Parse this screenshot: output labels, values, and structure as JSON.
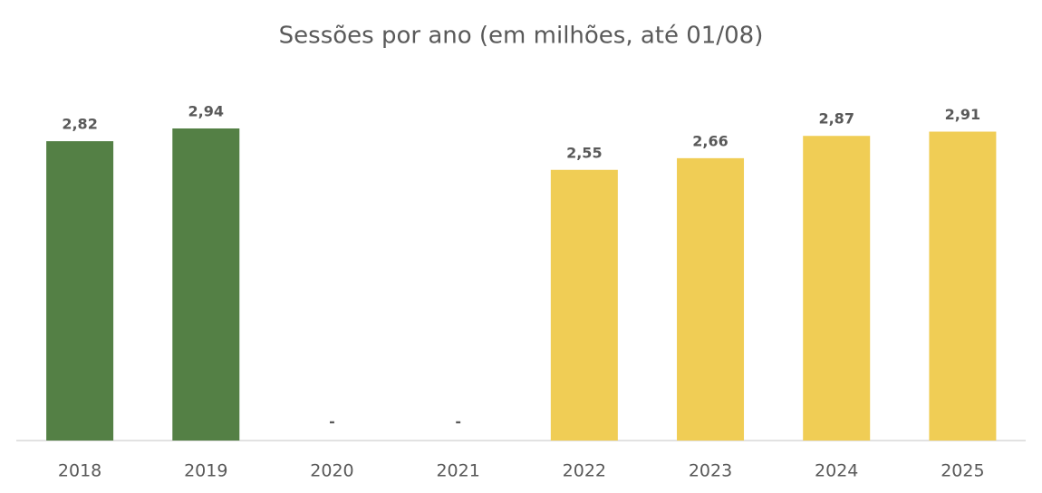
{
  "chart_data": {
    "type": "bar",
    "title": "Sessões por ano (em milhões, até 01/08)",
    "categories": [
      "2018",
      "2019",
      "2020",
      "2021",
      "2022",
      "2023",
      "2024",
      "2025"
    ],
    "values": [
      2.82,
      2.94,
      null,
      null,
      2.55,
      2.66,
      2.87,
      2.91
    ],
    "value_labels": [
      "2,82",
      "2,94",
      "-",
      "-",
      "2,55",
      "2,66",
      "2,87",
      "2,91"
    ],
    "colors": [
      "#548045",
      "#548045",
      "#548045",
      "#548045",
      "#f0cd55",
      "#f0cd55",
      "#f0cd55",
      "#f0cd55"
    ]
  }
}
